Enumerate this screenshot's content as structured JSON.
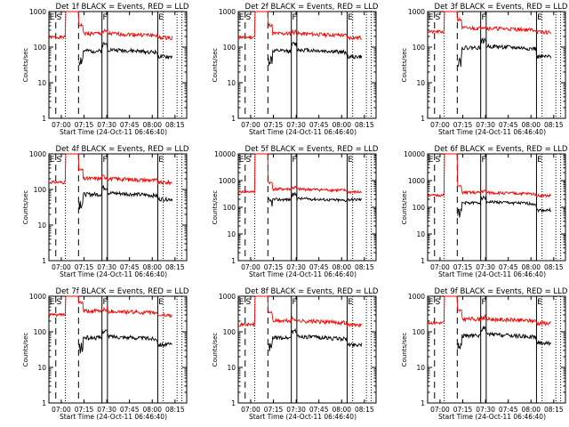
{
  "chart_data": [
    {
      "type": "line",
      "title": "Det  1f BLACK = Events, RED = LLD",
      "xlabel": "Start Time (24-Oct-11 06:46:40)",
      "ylabel": "Counts/sec",
      "scale": "log",
      "xtick_labels": [
        "07:00",
        "07:15",
        "07:30",
        "07:45",
        "08:00",
        "08:15"
      ],
      "ytick_labels": [
        "1",
        "10",
        "100",
        "1000"
      ],
      "markers": [
        "E",
        "S",
        "F",
        "E"
      ],
      "series": [
        {
          "color": "#ff0000",
          "base": 190,
          "spike_level": 1000
        },
        {
          "color": "#000000",
          "base": 55,
          "spike_level": 80
        }
      ]
    },
    {
      "type": "line",
      "title": "Det  2f BLACK = Events, RED = LLD",
      "xlabel": "Start Time (24-Oct-11 06:46:40)",
      "ylabel": "Counts/sec",
      "scale": "log",
      "xtick_labels": [
        "07:00",
        "07:15",
        "07:30",
        "07:45",
        "08:00",
        "08:15"
      ],
      "ytick_labels": [
        "1",
        "10",
        "100",
        "1000"
      ],
      "markers": [
        "E",
        "S",
        "F",
        "E"
      ],
      "series": [
        {
          "color": "#ff0000",
          "base": 190,
          "spike_level": 1000
        },
        {
          "color": "#000000",
          "base": 55,
          "spike_level": 80
        }
      ]
    },
    {
      "type": "line",
      "title": "Det  3f BLACK = Events, RED = LLD",
      "xlabel": "Start Time (24-Oct-11 06:46:40)",
      "ylabel": "Counts/sec",
      "scale": "log",
      "xtick_labels": [
        "07:00",
        "07:15",
        "07:30",
        "07:45",
        "08:00",
        "08:15"
      ],
      "ytick_labels": [
        "1",
        "10",
        "100",
        "1000"
      ],
      "markers": [
        "E",
        "S",
        "F",
        "E"
      ],
      "series": [
        {
          "color": "#ff0000",
          "base": 270,
          "spike_level": 1000
        },
        {
          "color": "#000000",
          "base": 55,
          "spike_level": 100
        }
      ]
    },
    {
      "type": "line",
      "title": "Det  4f BLACK = Events, RED = LLD",
      "xlabel": "Start Time (24-Oct-11 06:46:40)",
      "ylabel": "Counts/sec",
      "scale": "log",
      "xtick_labels": [
        "07:00",
        "07:15",
        "07:30",
        "07:45",
        "08:00",
        "08:15"
      ],
      "ytick_labels": [
        "1",
        "10",
        "100",
        "1000"
      ],
      "markers": [
        "E",
        "S",
        "F",
        "E"
      ],
      "series": [
        {
          "color": "#ff0000",
          "base": 160,
          "spike_level": 1000
        },
        {
          "color": "#000000",
          "base": 55,
          "spike_level": 75
        }
      ]
    },
    {
      "type": "line",
      "title": "Det  5f BLACK = Events, RED = LLD",
      "xlabel": "Start Time (24-Oct-11 06:46:40)",
      "ylabel": "Counts/sec",
      "scale": "log",
      "xtick_labels": [
        "07:00",
        "07:15",
        "07:30",
        "07:45",
        "08:00",
        "08:15"
      ],
      "ytick_labels": [
        "1",
        "10",
        "100",
        "1000",
        "10000"
      ],
      "markers": [
        "E",
        "S",
        "F",
        "E"
      ],
      "series": [
        {
          "color": "#ff0000",
          "base": 380,
          "spike_level": 10000
        },
        {
          "color": "#000000",
          "base": 200,
          "spike_level": 200
        }
      ]
    },
    {
      "type": "line",
      "title": "Det  6f BLACK = Events, RED = LLD",
      "xlabel": "Start Time (24-Oct-11 06:46:40)",
      "ylabel": "Counts/sec",
      "scale": "log",
      "xtick_labels": [
        "07:00",
        "07:15",
        "07:30",
        "07:45",
        "08:00",
        "08:15"
      ],
      "ytick_labels": [
        "1",
        "10",
        "100",
        "1000",
        "10000"
      ],
      "markers": [
        "E",
        "S",
        "F",
        "E"
      ],
      "series": [
        {
          "color": "#ff0000",
          "base": 280,
          "spike_level": 10000
        },
        {
          "color": "#000000",
          "base": 80,
          "spike_level": 150
        }
      ]
    },
    {
      "type": "line",
      "title": "Det  7f BLACK = Events, RED = LLD",
      "xlabel": "Start Time (24-Oct-11 06:46:40)",
      "ylabel": "Counts/sec",
      "scale": "log",
      "xtick_labels": [
        "07:00",
        "07:15",
        "07:30",
        "07:45",
        "08:00",
        "08:15"
      ],
      "ytick_labels": [
        "1",
        "10",
        "100",
        "1000"
      ],
      "markers": [
        "E",
        "S",
        "F",
        "E"
      ],
      "series": [
        {
          "color": "#ff0000",
          "base": 300,
          "spike_level": 1000
        },
        {
          "color": "#000000",
          "base": 45,
          "spike_level": 70
        }
      ]
    },
    {
      "type": "line",
      "title": "Det  8f BLACK = Events, RED = LLD",
      "xlabel": "Start Time (24-Oct-11 06:46:40)",
      "ylabel": "Counts/sec",
      "scale": "log",
      "xtick_labels": [
        "07:00",
        "07:15",
        "07:30",
        "07:45",
        "08:00",
        "08:15"
      ],
      "ytick_labels": [
        "1",
        "10",
        "100",
        "1000"
      ],
      "markers": [
        "E",
        "S",
        "F",
        "E"
      ],
      "series": [
        {
          "color": "#ff0000",
          "base": 160,
          "spike_level": 1000
        },
        {
          "color": "#000000",
          "base": 45,
          "spike_level": 70
        }
      ]
    },
    {
      "type": "line",
      "title": "Det  9f BLACK = Events, RED = LLD",
      "xlabel": "Start Time (24-Oct-11 06:46:40)",
      "ylabel": "Counts/sec",
      "scale": "log",
      "xtick_labels": [
        "07:00",
        "07:15",
        "07:30",
        "07:45",
        "08:00",
        "08:15"
      ],
      "ytick_labels": [
        "1",
        "10",
        "100",
        "1000"
      ],
      "markers": [
        "E",
        "S",
        "F",
        "E"
      ],
      "series": [
        {
          "color": "#ff0000",
          "base": 180,
          "spike_level": 1000
        },
        {
          "color": "#000000",
          "base": 50,
          "spike_level": 80
        }
      ]
    }
  ]
}
